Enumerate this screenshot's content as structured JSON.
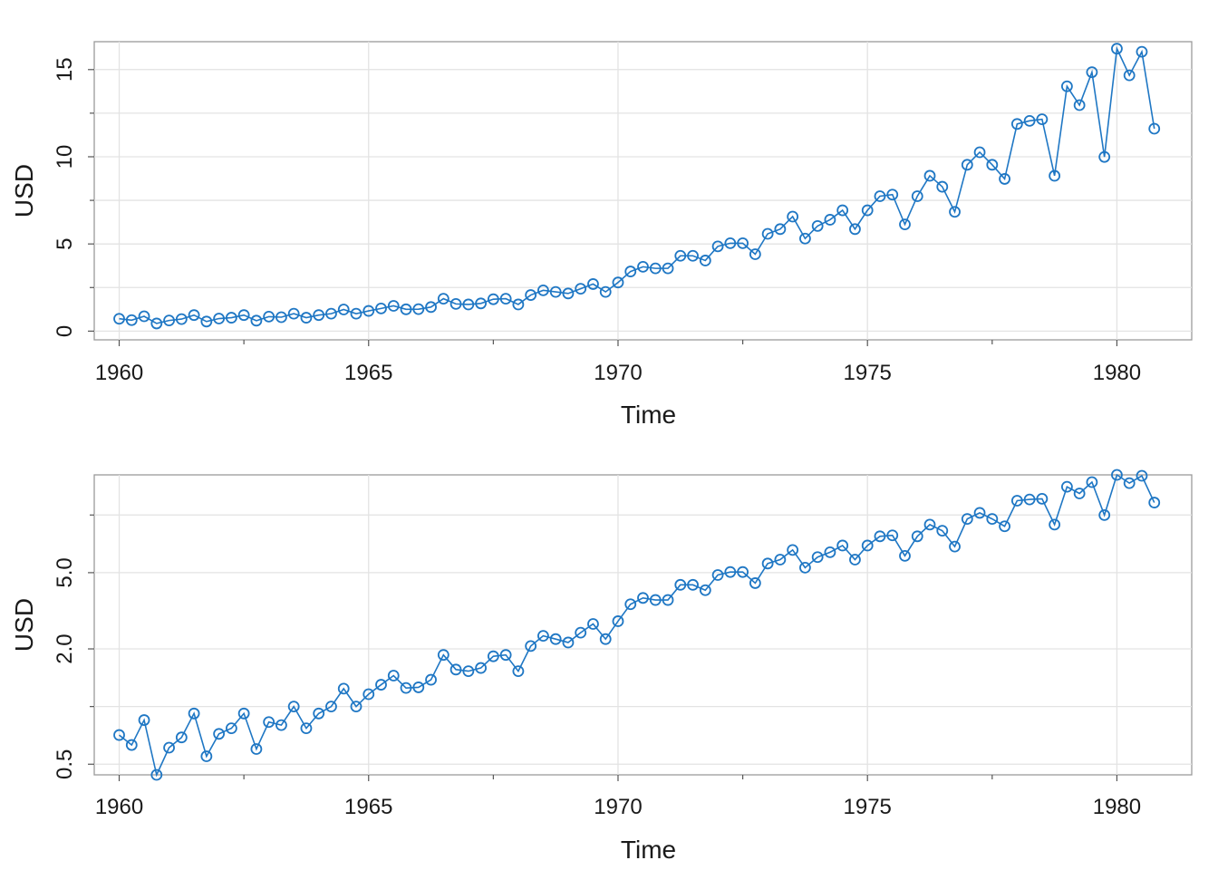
{
  "colors": {
    "series": "#1f77c4",
    "grid": "#e3e3e3",
    "frame": "#9a9a9a"
  },
  "chart_data": [
    {
      "type": "line",
      "markers": "circle",
      "xlabel": "Time",
      "ylabel": "USD",
      "xlim": [
        1959.5,
        1981.5
      ],
      "ylim": [
        -0.5,
        16.6
      ],
      "yscale": "linear",
      "xticks": [
        1960,
        1965,
        1970,
        1975,
        1980
      ],
      "xtick_labels": [
        "1960",
        "1965",
        "1970",
        "1975",
        "1980"
      ],
      "yticks": [
        0,
        5,
        10,
        15
      ],
      "ytick_labels": [
        "0",
        "5",
        "10",
        "15"
      ],
      "grid": true,
      "x_start": 1960,
      "x_step": 0.25,
      "values": [
        0.71,
        0.63,
        0.85,
        0.44,
        0.61,
        0.69,
        0.92,
        0.55,
        0.72,
        0.77,
        0.92,
        0.6,
        0.83,
        0.8,
        1.0,
        0.77,
        0.92,
        1.0,
        1.24,
        1.0,
        1.16,
        1.3,
        1.45,
        1.25,
        1.26,
        1.38,
        1.86,
        1.56,
        1.53,
        1.59,
        1.83,
        1.86,
        1.53,
        2.07,
        2.34,
        2.25,
        2.16,
        2.43,
        2.7,
        2.25,
        2.79,
        3.42,
        3.69,
        3.6,
        3.6,
        4.32,
        4.32,
        4.05,
        4.86,
        5.04,
        5.04,
        4.41,
        5.58,
        5.85,
        6.57,
        5.31,
        6.03,
        6.39,
        6.93,
        5.85,
        6.93,
        7.74,
        7.83,
        6.12,
        7.74,
        8.91,
        8.28,
        6.84,
        9.54,
        10.26,
        9.54,
        8.73,
        11.88,
        12.06,
        12.15,
        8.91,
        14.04,
        12.96,
        14.85,
        9.99,
        16.2,
        14.67,
        16.02,
        11.61
      ]
    },
    {
      "type": "line",
      "markers": "circle",
      "xlabel": "Time",
      "ylabel": "USD",
      "xlim": [
        1959.5,
        1981.5
      ],
      "ylim": [
        0.44,
        16.2
      ],
      "yscale": "log",
      "xticks": [
        1960,
        1965,
        1970,
        1975,
        1980
      ],
      "xtick_labels": [
        "1960",
        "1965",
        "1970",
        "1975",
        "1980"
      ],
      "yticks": [
        0.5,
        2.0,
        5.0
      ],
      "ytick_labels": [
        "0.5",
        "2.0",
        "5.0"
      ],
      "grid": true,
      "x_start": 1960,
      "x_step": 0.25,
      "values": [
        0.71,
        0.63,
        0.85,
        0.44,
        0.61,
        0.69,
        0.92,
        0.55,
        0.72,
        0.77,
        0.92,
        0.6,
        0.83,
        0.8,
        1.0,
        0.77,
        0.92,
        1.0,
        1.24,
        1.0,
        1.16,
        1.3,
        1.45,
        1.25,
        1.26,
        1.38,
        1.86,
        1.56,
        1.53,
        1.59,
        1.83,
        1.86,
        1.53,
        2.07,
        2.34,
        2.25,
        2.16,
        2.43,
        2.7,
        2.25,
        2.79,
        3.42,
        3.69,
        3.6,
        3.6,
        4.32,
        4.32,
        4.05,
        4.86,
        5.04,
        5.04,
        4.41,
        5.58,
        5.85,
        6.57,
        5.31,
        6.03,
        6.39,
        6.93,
        5.85,
        6.93,
        7.74,
        7.83,
        6.12,
        7.74,
        8.91,
        8.28,
        6.84,
        9.54,
        10.26,
        9.54,
        8.73,
        11.88,
        12.06,
        12.15,
        8.91,
        14.04,
        12.96,
        14.85,
        9.99,
        16.2,
        14.67,
        16.02,
        11.61
      ]
    }
  ]
}
